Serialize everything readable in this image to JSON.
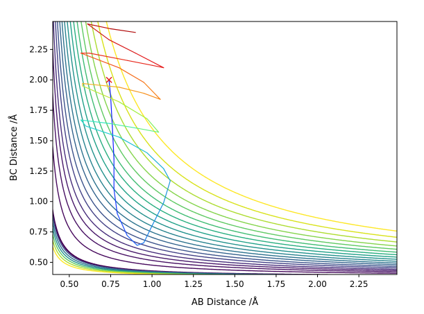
{
  "chart_data": {
    "type": "contour",
    "title": "",
    "xlabel": "AB Distance /Å",
    "ylabel": "BC Distance /Å",
    "xlim": [
      0.4,
      2.48
    ],
    "ylim": [
      0.4,
      2.48
    ],
    "x_ticks": [
      "0.50",
      "0.75",
      "1.00",
      "1.25",
      "1.50",
      "1.75",
      "2.00",
      "2.25"
    ],
    "y_ticks": [
      "0.50",
      "0.75",
      "1.00",
      "1.25",
      "1.50",
      "1.75",
      "2.00",
      "2.25"
    ],
    "grid": false,
    "legend": "none",
    "colormap": "viridis",
    "start_marker": {
      "symbol": "x",
      "color": "#e41a1c",
      "x": 0.74,
      "y": 2.0
    },
    "trajectory": [
      {
        "x": 0.74,
        "y": 2.0,
        "color": "#0a1cff"
      },
      {
        "x": 0.75,
        "y": 1.86,
        "color": "#0a1cff"
      },
      {
        "x": 0.76,
        "y": 1.62,
        "color": "#0a1cff"
      },
      {
        "x": 0.77,
        "y": 1.35,
        "color": "#1230ff"
      },
      {
        "x": 0.77,
        "y": 1.1,
        "color": "#1438ff"
      },
      {
        "x": 0.79,
        "y": 0.9,
        "color": "#1a4cff"
      },
      {
        "x": 0.85,
        "y": 0.72,
        "color": "#1e60f8"
      },
      {
        "x": 0.91,
        "y": 0.64,
        "color": "#1e70ee"
      },
      {
        "x": 0.95,
        "y": 0.66,
        "color": "#1e80e6"
      },
      {
        "x": 1.0,
        "y": 0.8,
        "color": "#1a8ce0"
      },
      {
        "x": 1.07,
        "y": 0.99,
        "color": "#1894da"
      },
      {
        "x": 1.11,
        "y": 1.17,
        "color": "#1aa4d8"
      },
      {
        "x": 1.07,
        "y": 1.27,
        "color": "#1cb0d4"
      },
      {
        "x": 0.97,
        "y": 1.4,
        "color": "#20c0d4"
      },
      {
        "x": 0.8,
        "y": 1.53,
        "color": "#24d0d4"
      },
      {
        "x": 0.6,
        "y": 1.62,
        "color": "#28e0cc"
      },
      {
        "x": 0.57,
        "y": 1.67,
        "color": "#30e8c0"
      },
      {
        "x": 0.75,
        "y": 1.64,
        "color": "#48eea0"
      },
      {
        "x": 0.92,
        "y": 1.6,
        "color": "#60f080"
      },
      {
        "x": 1.04,
        "y": 1.57,
        "color": "#80f060"
      },
      {
        "x": 0.97,
        "y": 1.68,
        "color": "#a0f040"
      },
      {
        "x": 0.8,
        "y": 1.82,
        "color": "#c0e838"
      },
      {
        "x": 0.58,
        "y": 1.95,
        "color": "#e0d030"
      },
      {
        "x": 0.58,
        "y": 1.97,
        "color": "#f0b020"
      },
      {
        "x": 0.8,
        "y": 1.94,
        "color": "#f59a20"
      },
      {
        "x": 0.95,
        "y": 1.89,
        "color": "#f78c1a"
      },
      {
        "x": 1.05,
        "y": 1.84,
        "color": "#f8801a"
      },
      {
        "x": 0.95,
        "y": 1.98,
        "color": "#f56c1a"
      },
      {
        "x": 0.8,
        "y": 2.1,
        "color": "#f2561a"
      },
      {
        "x": 0.57,
        "y": 2.22,
        "color": "#ee3c1a"
      },
      {
        "x": 0.62,
        "y": 2.22,
        "color": "#ea301a"
      },
      {
        "x": 0.85,
        "y": 2.16,
        "color": "#e8261a"
      },
      {
        "x": 1.0,
        "y": 2.12,
        "color": "#e61e1a"
      },
      {
        "x": 1.07,
        "y": 2.1,
        "color": "#e4181a"
      },
      {
        "x": 0.9,
        "y": 2.22,
        "color": "#d81414"
      },
      {
        "x": 0.74,
        "y": 2.33,
        "color": "#cc1010"
      },
      {
        "x": 0.61,
        "y": 2.46,
        "color": "#c00c0c"
      },
      {
        "x": 0.75,
        "y": 2.42,
        "color": "#b00808"
      },
      {
        "x": 0.9,
        "y": 2.39,
        "color": "#a00404"
      }
    ],
    "contour_levels": [
      {
        "a": 0.1,
        "color": "#440154"
      },
      {
        "a": 0.2,
        "color": "#46085c"
      },
      {
        "a": 0.28,
        "color": "#471063"
      },
      {
        "a": 0.35,
        "color": "#48186a"
      },
      {
        "a": 0.42,
        "color": "#472d7b"
      },
      {
        "a": 0.5,
        "color": "#424086"
      },
      {
        "a": 0.58,
        "color": "#3b528b"
      },
      {
        "a": 0.67,
        "color": "#33638d"
      },
      {
        "a": 0.76,
        "color": "#2c728e"
      },
      {
        "a": 0.86,
        "color": "#26828e"
      },
      {
        "a": 0.97,
        "color": "#21918c"
      },
      {
        "a": 1.09,
        "color": "#1fa088"
      },
      {
        "a": 1.22,
        "color": "#28ae80"
      },
      {
        "a": 1.36,
        "color": "#3fbc73"
      },
      {
        "a": 1.52,
        "color": "#5ec962"
      },
      {
        "a": 1.7,
        "color": "#84d44b"
      },
      {
        "a": 1.92,
        "color": "#addc30"
      },
      {
        "a": 2.18,
        "color": "#d8e219"
      },
      {
        "a": 2.52,
        "color": "#fde725"
      }
    ],
    "inner_wall_levels": [
      {
        "a": 0.021,
        "color": "#440154"
      },
      {
        "a": 0.018,
        "color": "#3b528b"
      },
      {
        "a": 0.015,
        "color": "#2c728e"
      },
      {
        "a": 0.012,
        "color": "#21918c"
      },
      {
        "a": 0.009,
        "color": "#5ec962"
      },
      {
        "a": 0.006,
        "color": "#addc30"
      },
      {
        "a": 0.003,
        "color": "#fde725"
      }
    ]
  }
}
